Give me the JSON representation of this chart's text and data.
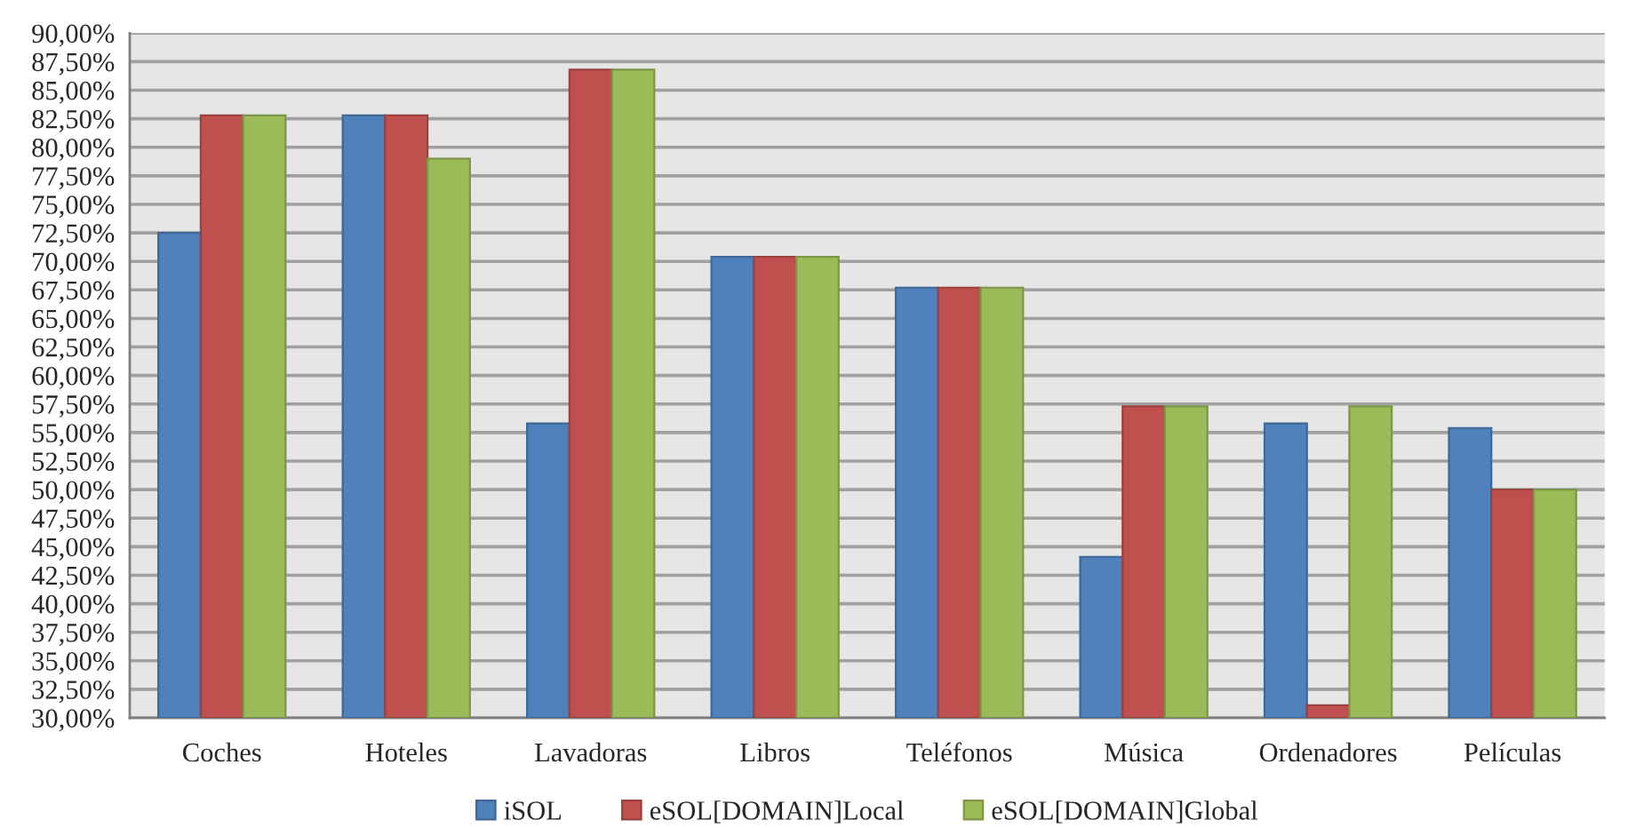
{
  "chart_data": {
    "type": "bar",
    "categories": [
      "Coches",
      "Hoteles",
      "Lavadoras",
      "Libros",
      "Teléfonos",
      "Música",
      "Ordenadores",
      "Películas"
    ],
    "series": [
      {
        "name": "iSOL",
        "color": "#4f81bd",
        "values": [
          72.5,
          82.8,
          55.8,
          70.4,
          67.7,
          44.1,
          55.8,
          55.4
        ]
      },
      {
        "name": "eSOL[DOMAIN]Local",
        "color": "#c0504d",
        "values": [
          82.8,
          82.8,
          86.8,
          70.4,
          67.7,
          57.3,
          31.1,
          50.0
        ]
      },
      {
        "name": "eSOL[DOMAIN]Global",
        "color": "#9bbb59",
        "values": [
          82.8,
          79.0,
          86.8,
          70.4,
          67.7,
          57.3,
          57.3,
          50.0
        ]
      }
    ],
    "ylim": [
      30,
      90
    ],
    "yticks": [
      {
        "value": 30,
        "label": "30,00%"
      },
      {
        "value": 32.5,
        "label": "32,50%"
      },
      {
        "value": 35,
        "label": "35,00%"
      },
      {
        "value": 37.5,
        "label": "37,50%"
      },
      {
        "value": 40,
        "label": "40,00%"
      },
      {
        "value": 42.5,
        "label": "42,50%"
      },
      {
        "value": 45,
        "label": "45,00%"
      },
      {
        "value": 47.5,
        "label": "47,50%"
      },
      {
        "value": 50,
        "label": "50,00%"
      },
      {
        "value": 52.5,
        "label": "52,50%"
      },
      {
        "value": 55,
        "label": "55,00%"
      },
      {
        "value": 57.5,
        "label": "57,50%"
      },
      {
        "value": 60,
        "label": "60,00%"
      },
      {
        "value": 62.5,
        "label": "62,50%"
      },
      {
        "value": 65,
        "label": "65,00%"
      },
      {
        "value": 67.5,
        "label": "67,50%"
      },
      {
        "value": 70,
        "label": "70,00%"
      },
      {
        "value": 72.5,
        "label": "72,50%"
      },
      {
        "value": 75,
        "label": "75,00%"
      },
      {
        "value": 77.5,
        "label": "77,50%"
      },
      {
        "value": 80,
        "label": "80,00%"
      },
      {
        "value": 82.5,
        "label": "82,50%"
      },
      {
        "value": 85,
        "label": "85,00%"
      },
      {
        "value": 87.5,
        "label": "87,50%"
      },
      {
        "value": 90,
        "label": "90,00%"
      }
    ],
    "grid": "y",
    "legend": "bottom"
  }
}
